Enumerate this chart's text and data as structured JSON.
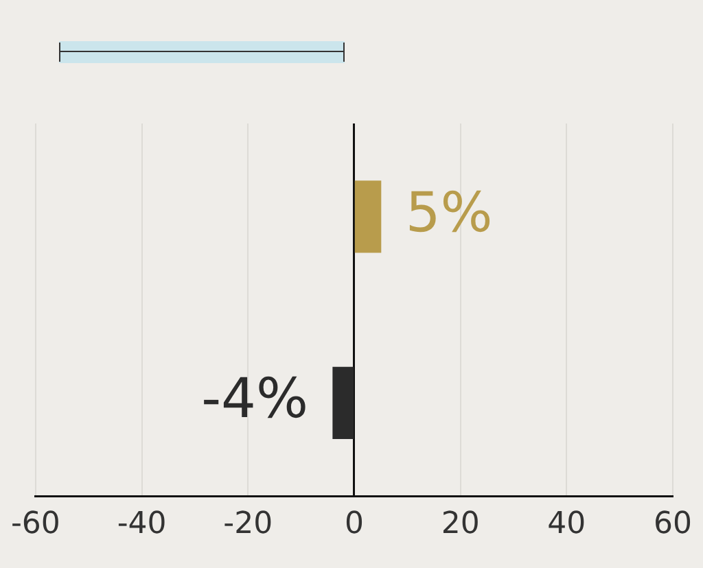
{
  "chart_data": {
    "type": "bar",
    "orientation": "horizontal",
    "categories": [
      null,
      null
    ],
    "series": [
      {
        "colors": [
          "#b89c4c",
          "#2b2b2b"
        ],
        "values": [
          5,
          -4
        ],
        "value_labels": [
          "5%",
          "-4%"
        ]
      }
    ],
    "xlim": [
      -60,
      60
    ],
    "xticks": [
      -60,
      -40,
      -20,
      0,
      20,
      40,
      60
    ],
    "grid": "x",
    "legend": false
  }
}
